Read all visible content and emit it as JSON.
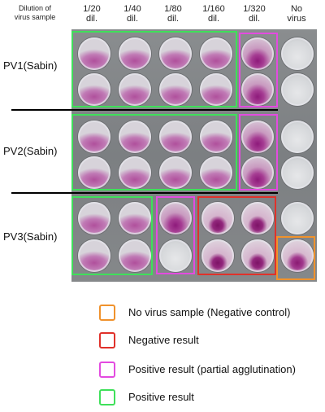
{
  "header": {
    "dilution_label_line1": "Dilution of",
    "dilution_label_line2": "virus sample",
    "columns": [
      {
        "line1": "1/20",
        "line2": "dil."
      },
      {
        "line1": "1/40",
        "line2": "dil."
      },
      {
        "line1": "1/80",
        "line2": "dil."
      },
      {
        "line1": "1/160",
        "line2": "dil."
      },
      {
        "line1": "1/320",
        "line2": "dil."
      },
      {
        "line1": "No",
        "line2": "virus"
      }
    ]
  },
  "rows": [
    {
      "label": "PV1(Sabin)"
    },
    {
      "label": "PV2(Sabin)"
    },
    {
      "label": "PV3(Sabin)"
    }
  ],
  "legend": [
    {
      "text": "No virus sample (Negative control)",
      "color": "#f0922c"
    },
    {
      "text": "Negative result",
      "color": "#e0312a"
    },
    {
      "text": "Positive result (partial agglutination)",
      "color": "#e34be0"
    },
    {
      "text": "Positive result",
      "color": "#3fe05a"
    }
  ]
}
